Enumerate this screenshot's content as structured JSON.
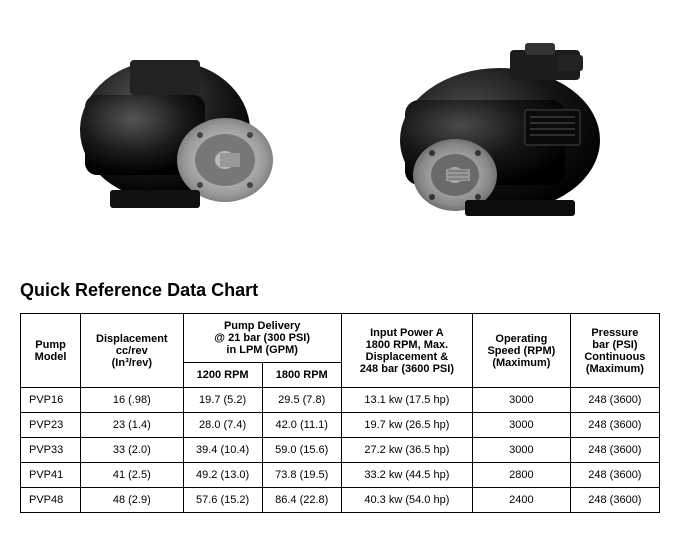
{
  "title": "Quick Reference Data Chart",
  "headers": {
    "model": "Pump\nModel",
    "displacement": "Displacement\ncc/rev\n(In³/rev)",
    "delivery": "Pump Delivery\n@ 21 bar (300 PSI)\nin LPM (GPM)",
    "delivery_1200": "1200 RPM",
    "delivery_1800": "1800 RPM",
    "input_power": "Input Power A\n1800 RPM, Max.\nDisplacement &\n248 bar (3600 PSI)",
    "speed": "Operating\nSpeed (RPM)\n(Maximum)",
    "pressure": "Pressure\nbar (PSI)\nContinuous\n(Maximum)"
  },
  "rows": [
    {
      "model": "PVP16",
      "disp": "16   (.98)",
      "d1200": "19.7 (5.2)",
      "d1800": "29.5 (7.8)",
      "power": "13.1 kw (17.5 hp)",
      "speed": "3000",
      "pressure": "248 (3600)"
    },
    {
      "model": "PVP23",
      "disp": "23   (1.4)",
      "d1200": "28.0 (7.4)",
      "d1800": "42.0 (11.1)",
      "power": "19.7 kw (26.5 hp)",
      "speed": "3000",
      "pressure": "248 (3600)"
    },
    {
      "model": "PVP33",
      "disp": "33   (2.0)",
      "d1200": "39.4 (10.4)",
      "d1800": "59.0 (15.6)",
      "power": "27.2 kw (36.5 hp)",
      "speed": "3000",
      "pressure": "248 (3600)"
    },
    {
      "model": "PVP41",
      "disp": "41   (2.5)",
      "d1200": "49.2 (13.0)",
      "d1800": "73.8 (19.5)",
      "power": "33.2 kw (44.5 hp)",
      "speed": "2800",
      "pressure": "248 (3600)"
    },
    {
      "model": "PVP48",
      "disp": "48   (2.9)",
      "d1200": "57.6 (15.2)",
      "d1800": "86.4 (22.8)",
      "power": "40.3 kw (54.0 hp)",
      "speed": "2400",
      "pressure": "248 (3600)"
    }
  ],
  "colors": {
    "pump_body": "#1a1a1a",
    "pump_face": "#888888",
    "pump_highlight": "#c0c0c0"
  }
}
